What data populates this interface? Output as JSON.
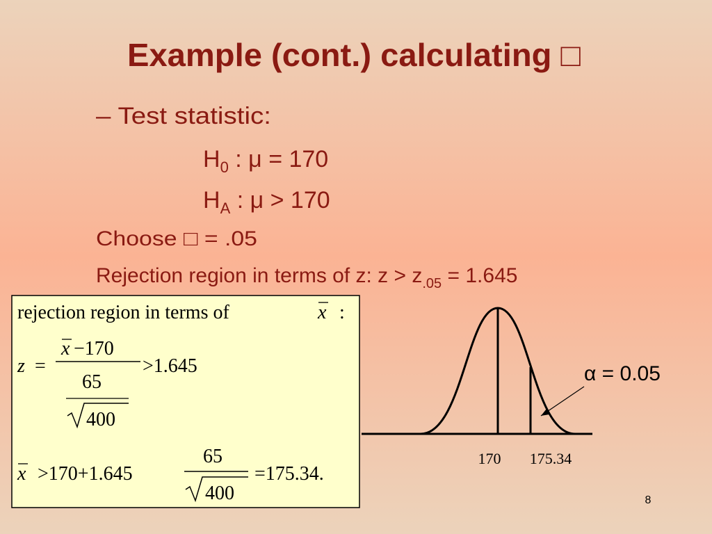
{
  "title": "Example (cont.) calculating □",
  "bullet": "– Test statistic:",
  "h0": {
    "symbol": "H",
    "sub": "0",
    "text": " : μ = 170"
  },
  "ha": {
    "symbol": "H",
    "sub": "A",
    "text": " : μ > 170"
  },
  "choose": "Choose □ = .05",
  "rejection_z": {
    "text": "Rejection region in terms of z: z > z",
    "sub": ".05",
    "tail": " = 1.645"
  },
  "box": {
    "heading": {
      "text": "rejection region in terms of",
      "var": "x",
      "colon": ":"
    },
    "line1": {
      "lhs": "z",
      "eq": "=",
      "num_var": "x",
      "num_rest": "−170",
      "den": "65",
      "root": "400",
      "rhs": ">1.645"
    },
    "line2": {
      "var": "x",
      "lhs": ">170+1.645",
      "num": "65",
      "root": "400",
      "rhs": "=175.34."
    }
  },
  "figure": {
    "alpha": "α = 0.05",
    "mean_label": "170",
    "cut_label": "175.34"
  },
  "page_number": "8"
}
